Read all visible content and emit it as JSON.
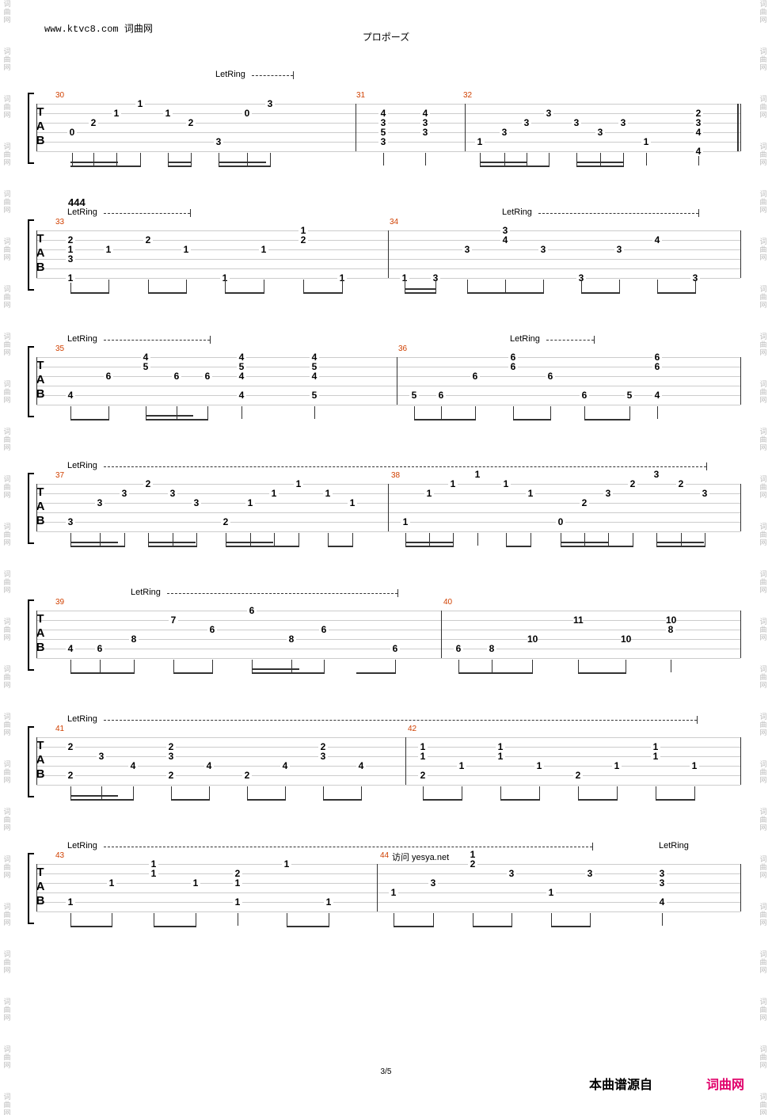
{
  "header": {
    "site": "www.ktvc8.com 词曲网",
    "title": "プロポーズ"
  },
  "watermark": "词曲网",
  "marker": "444",
  "visit_text": "访问 yesya.net",
  "footer": {
    "page_number": "3/5",
    "source_label": "本曲谱源自",
    "source_brand": "词曲网",
    "brand_color": "#e0006a"
  },
  "tab_letters": [
    "T",
    "A",
    "B"
  ],
  "let_ring_label": "LetRing",
  "systems": [
    {
      "measures": [
        "30",
        "31",
        "32"
      ]
    },
    {
      "measures": [
        "33",
        "34"
      ]
    },
    {
      "measures": [
        "35",
        "36"
      ]
    },
    {
      "measures": [
        "37",
        "38"
      ]
    },
    {
      "measures": [
        "39",
        "40"
      ]
    },
    {
      "measures": [
        "41",
        "42"
      ]
    },
    {
      "measures": [
        "43",
        "44"
      ]
    }
  ]
}
